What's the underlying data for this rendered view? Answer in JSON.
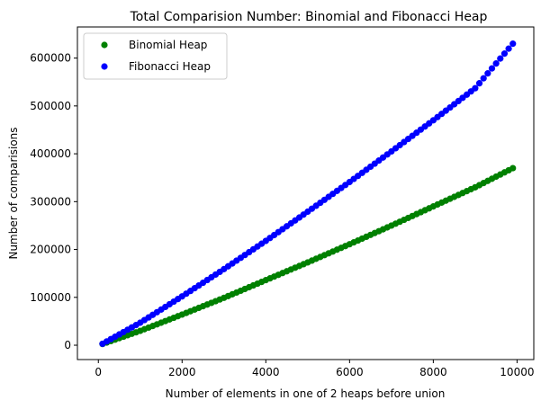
{
  "chart_data": {
    "type": "scatter",
    "title": "Total Comparision Number: Binomial and Fibonacci Heap",
    "xlabel": "Number of elements in one of 2 heaps before union",
    "ylabel": "Number of comparisions",
    "xlim": [
      -500,
      10400
    ],
    "ylim": [
      -30000,
      665000
    ],
    "xticks": [
      0,
      2000,
      4000,
      6000,
      8000,
      10000
    ],
    "yticks": [
      0,
      100000,
      200000,
      300000,
      400000,
      500000,
      600000
    ],
    "xtick_labels": [
      "0",
      "2000",
      "4000",
      "6000",
      "8000",
      "10000"
    ],
    "ytick_labels": [
      "0",
      "100000",
      "200000",
      "300000",
      "400000",
      "500000",
      "600000"
    ],
    "grid": false,
    "legend_position": "top-left",
    "x_range": {
      "start": 100,
      "end": 9900,
      "step": 100
    },
    "series": [
      {
        "name": "Binomial Heap",
        "color": "#008000",
        "points": [
          [
            100,
            2600
          ],
          [
            1000,
            30000
          ],
          [
            2000,
            64000
          ],
          [
            3000,
            99000
          ],
          [
            4000,
            136000
          ],
          [
            5000,
            173000
          ],
          [
            6000,
            211000
          ],
          [
            7000,
            250000
          ],
          [
            8000,
            290000
          ],
          [
            9000,
            330000
          ],
          [
            9900,
            370000
          ]
        ]
      },
      {
        "name": "Fibonacci Heap",
        "color": "#0000ff",
        "points": [
          [
            100,
            3000
          ],
          [
            1000,
            47000
          ],
          [
            2000,
            102000
          ],
          [
            3000,
            159000
          ],
          [
            4000,
            218000
          ],
          [
            5000,
            279000
          ],
          [
            6000,
            341000
          ],
          [
            7000,
            405000
          ],
          [
            8000,
            470000
          ],
          [
            9000,
            537000
          ],
          [
            9900,
            630000
          ]
        ]
      }
    ]
  }
}
